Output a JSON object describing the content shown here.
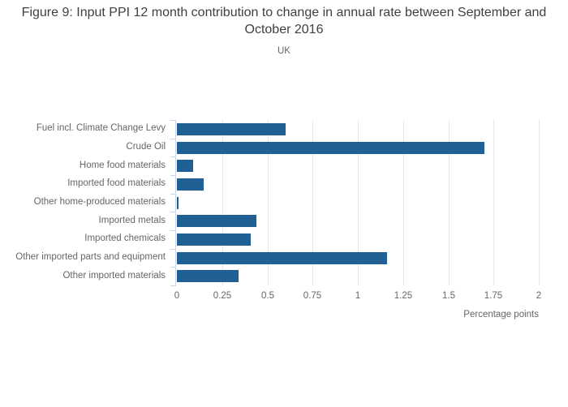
{
  "chart_data": {
    "type": "bar",
    "orientation": "horizontal",
    "title": "Figure 9: Input PPI 12 month contribution to change in annual rate between September and October 2016",
    "subtitle": "UK",
    "categories": [
      "Fuel incl. Climate Change Levy",
      "Crude Oil",
      "Home food materials",
      "Imported food materials",
      "Other home-produced materials",
      "Imported metals",
      "Imported chemicals",
      "Other imported parts and equipment",
      "Other imported materials"
    ],
    "values": [
      0.6,
      1.7,
      0.09,
      0.15,
      0.01,
      0.44,
      0.41,
      1.16,
      0.34
    ],
    "xlabel": "Percentage points",
    "xlim": [
      0,
      2
    ],
    "xtick_labels": [
      "0",
      "0.25",
      "0.5",
      "0.75",
      "1",
      "1.25",
      "1.5",
      "1.75",
      "2"
    ],
    "xtick_values": [
      0,
      0.25,
      0.5,
      0.75,
      1,
      1.25,
      1.5,
      1.75,
      2
    ],
    "grid": true,
    "legend": "none",
    "colors": {
      "bar": "#206095",
      "gridline": "#e6e6e6",
      "axis_line": "#ccd6eb",
      "title_text": "#404040",
      "label_text": "#666666",
      "background": "#ffffff"
    }
  }
}
